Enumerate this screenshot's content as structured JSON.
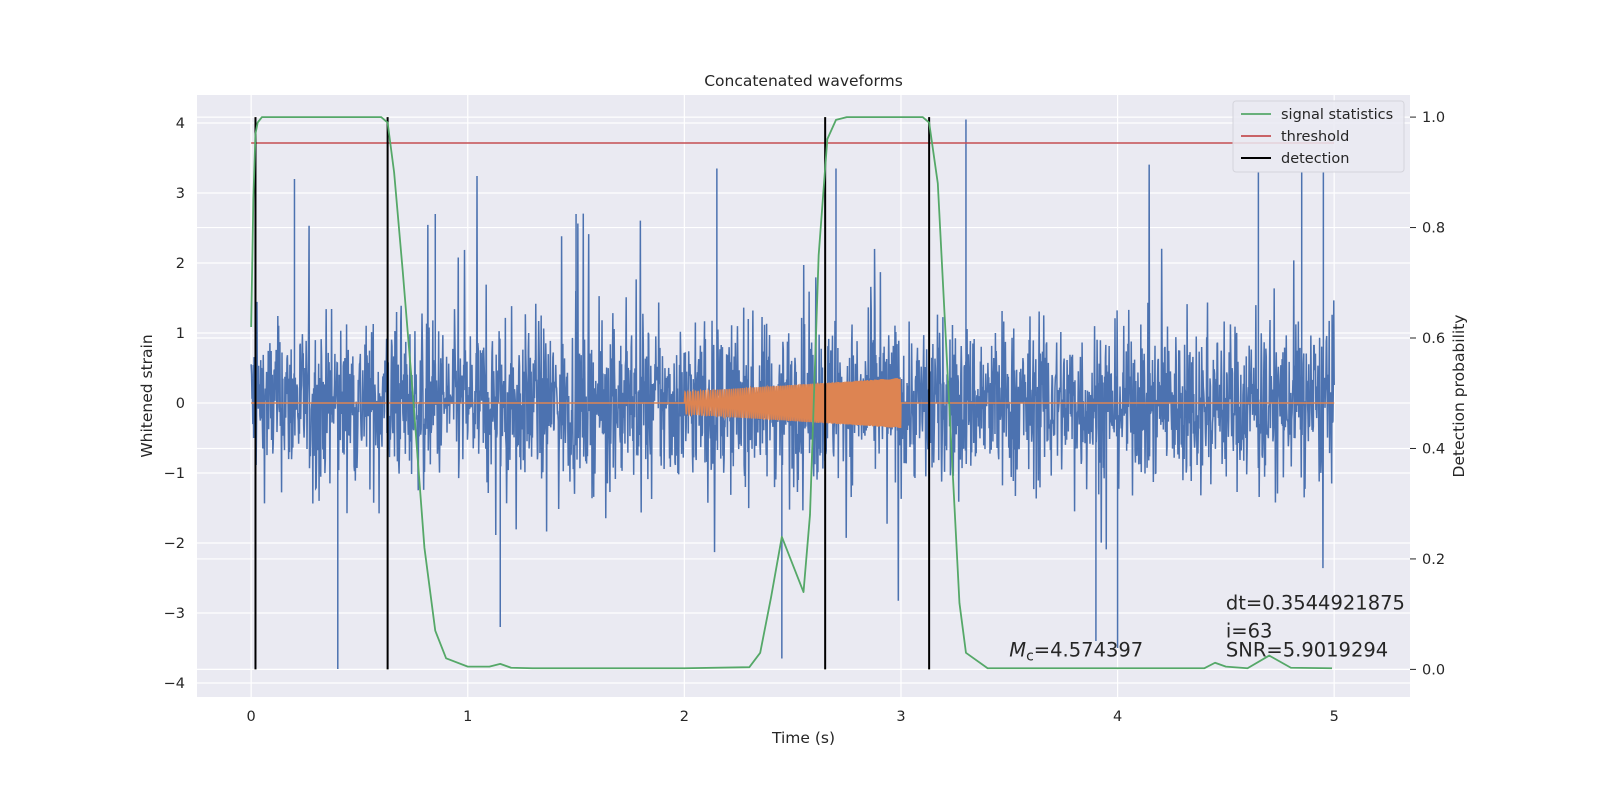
{
  "chart_data": {
    "type": "line",
    "title": "Concatenated waveforms",
    "xlabel": "Time (s)",
    "ylabel_left": "Whitened strain",
    "ylabel_right": "Detection probability",
    "xlim": [
      -0.25,
      5.35
    ],
    "ylim_left": [
      -4.2,
      4.4
    ],
    "ylim_right": [
      -0.05,
      1.04
    ],
    "x_ticks": [
      "0",
      "1",
      "2",
      "3",
      "4",
      "5"
    ],
    "x_tick_values": [
      0,
      1,
      2,
      3,
      4,
      5
    ],
    "y_left_ticks": [
      "−4",
      "−3",
      "−2",
      "−1",
      "0",
      "1",
      "2",
      "3",
      "4"
    ],
    "y_left_tick_values": [
      -4,
      -3,
      -2,
      -1,
      0,
      1,
      2,
      3,
      4
    ],
    "y_right_ticks": [
      "0.0",
      "0.2",
      "0.4",
      "0.6",
      "0.8",
      "1.0"
    ],
    "y_right_tick_values": [
      0.0,
      0.2,
      0.4,
      0.6,
      0.8,
      1.0
    ],
    "grid": true,
    "legend_position": "top-right",
    "legend": [
      "signal statistics",
      "threshold",
      "detection"
    ],
    "series": [
      {
        "name": "Whitened strain noise",
        "axis": "left",
        "color": "#4c72b0",
        "x_range": [
          0,
          5
        ],
        "envelope": {
          "typical_amplitude": 0.65,
          "max": 4.05,
          "min": -3.8
        },
        "spikes": [
          {
            "x": 0.2,
            "y": 3.2
          },
          {
            "x": 0.4,
            "y": -3.8
          },
          {
            "x": 0.85,
            "y": 2.7
          },
          {
            "x": 1.15,
            "y": -3.2
          },
          {
            "x": 1.5,
            "y": 2.7
          },
          {
            "x": 2.15,
            "y": 3.35
          },
          {
            "x": 2.45,
            "y": -3.65
          },
          {
            "x": 2.7,
            "y": 3.35
          },
          {
            "x": 3.3,
            "y": 4.05
          },
          {
            "x": 3.9,
            "y": -3.4
          },
          {
            "x": 4.0,
            "y": -3.5
          },
          {
            "x": 4.65,
            "y": 3.3
          },
          {
            "x": 4.85,
            "y": 3.3
          },
          {
            "x": 4.95,
            "y": 3.3
          }
        ]
      },
      {
        "name": "Injected waveform",
        "axis": "left",
        "color": "#dd8452",
        "x_range": [
          0,
          5
        ],
        "chirp_x_range": [
          2.0,
          3.0
        ],
        "chirp_amplitude_start": 0.16,
        "chirp_amplitude_end": 0.36
      },
      {
        "name": "signal statistics",
        "axis": "right",
        "color": "#55a868",
        "x": [
          0,
          0.01,
          0.02,
          0.03,
          0.05,
          0.1,
          0.2,
          0.6,
          0.63,
          0.66,
          0.7,
          0.75,
          0.8,
          0.85,
          0.9,
          1.0,
          1.1,
          1.15,
          1.2,
          1.3,
          2.0,
          2.3,
          2.35,
          2.4,
          2.45,
          2.5,
          2.55,
          2.58,
          2.62,
          2.66,
          2.7,
          2.75,
          2.85,
          3.1,
          3.13,
          3.17,
          3.22,
          3.27,
          3.3,
          3.4,
          4.4,
          4.45,
          4.5,
          4.6,
          4.7,
          4.8,
          4.99
        ],
        "y": [
          0.62,
          0.85,
          0.97,
          0.99,
          1.0,
          1.0,
          1.0,
          1.0,
          0.99,
          0.9,
          0.72,
          0.48,
          0.22,
          0.07,
          0.02,
          0.005,
          0.005,
          0.01,
          0.003,
          0.002,
          0.002,
          0.004,
          0.03,
          0.13,
          0.24,
          0.19,
          0.14,
          0.28,
          0.75,
          0.96,
          0.995,
          1.0,
          1.0,
          1.0,
          0.99,
          0.88,
          0.5,
          0.12,
          0.03,
          0.002,
          0.002,
          0.012,
          0.005,
          0.002,
          0.025,
          0.003,
          0.002
        ]
      },
      {
        "name": "threshold",
        "axis": "right",
        "color": "#c44e52",
        "x": [
          0,
          5
        ],
        "y": [
          0.953,
          0.953
        ]
      },
      {
        "name": "detection",
        "axis": "right",
        "color": "#000000",
        "x": [
          0.02,
          0.63,
          2.65,
          3.13
        ],
        "y_range": [
          0.0,
          1.0
        ]
      }
    ],
    "annotations": [
      {
        "text": "dt=0.3544921875",
        "x": 4.5,
        "y": -2.95
      },
      {
        "text": " i=63",
        "x": 4.5,
        "y": -3.35
      },
      {
        "text": "SNR=5.9019294",
        "x": 4.5,
        "y": -3.62
      },
      {
        "text_symbol": "M",
        "text_subscript": "c",
        "text_value": "=4.574397",
        "x": 3.5,
        "y": -3.62
      }
    ]
  }
}
